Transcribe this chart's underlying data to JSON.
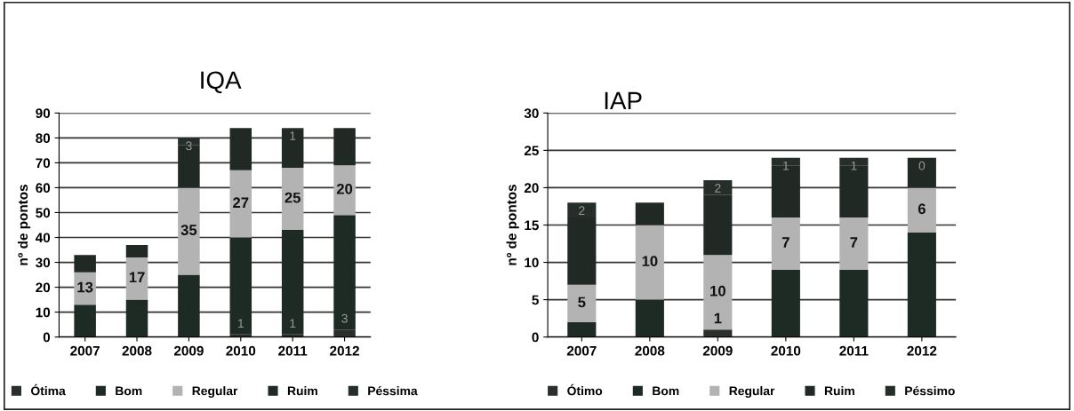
{
  "chart_data": [
    {
      "type": "bar",
      "stacked": true,
      "title": "IQA",
      "ylabel": "nº de pontos",
      "categories": [
        "2007",
        "2008",
        "2009",
        "2010",
        "2011",
        "2012"
      ],
      "ylim": [
        0,
        90
      ],
      "yticks": [
        0,
        10,
        20,
        30,
        40,
        50,
        60,
        70,
        80,
        90
      ],
      "grid": "y",
      "legend": "bottom",
      "series": [
        {
          "name": "Ótima",
          "color": "#2a2f2c",
          "values": [
            0,
            0,
            0,
            1,
            1,
            3
          ],
          "value_labels": [
            null,
            null,
            null,
            "1",
            "1",
            "3"
          ]
        },
        {
          "name": "Bom",
          "color": "#1e2a24",
          "values": [
            13,
            15,
            25,
            39,
            42,
            46
          ]
        },
        {
          "name": "Regular",
          "color": "#b3b3b3",
          "values": [
            13,
            17,
            35,
            27,
            25,
            20
          ],
          "value_labels": [
            "13",
            "17",
            "35",
            "27",
            "25",
            "20"
          ]
        },
        {
          "name": "Ruim",
          "color": "#202924",
          "values": [
            7,
            5,
            17,
            17,
            15,
            15
          ]
        },
        {
          "name": "Péssima",
          "color": "#262e29",
          "values": [
            0,
            0,
            3,
            0,
            1,
            0
          ],
          "value_labels": [
            null,
            null,
            "3",
            null,
            "1",
            null
          ]
        }
      ]
    },
    {
      "type": "bar",
      "stacked": true,
      "title": "IAP",
      "ylabel": "nº de pontos",
      "categories": [
        "2007",
        "2008",
        "2009",
        "2010",
        "2011",
        "2012"
      ],
      "ylim": [
        0,
        30
      ],
      "yticks": [
        0,
        5,
        10,
        15,
        20,
        25,
        30
      ],
      "grid": "y",
      "legend": "bottom",
      "series": [
        {
          "name": "Ótimo",
          "color": "#2a2f2c",
          "values": [
            0,
            0,
            1,
            0,
            0,
            0
          ],
          "value_labels": [
            null,
            null,
            "1",
            null,
            null,
            null
          ]
        },
        {
          "name": "Bom",
          "color": "#1e2a24",
          "values": [
            2,
            5,
            0,
            9,
            9,
            14
          ]
        },
        {
          "name": "Regular",
          "color": "#b3b3b3",
          "values": [
            5,
            10,
            10,
            7,
            7,
            6
          ],
          "value_labels": [
            "5",
            "10",
            "10",
            "7",
            "7",
            "6"
          ]
        },
        {
          "name": "Ruim",
          "color": "#202924",
          "values": [
            9,
            3,
            8,
            7,
            7,
            4
          ]
        },
        {
          "name": "Péssimo",
          "color": "#262e29",
          "values": [
            2,
            0,
            2,
            1,
            1,
            0
          ],
          "value_labels": [
            "2",
            null,
            "2",
            "1",
            "1",
            "0"
          ]
        }
      ]
    }
  ]
}
